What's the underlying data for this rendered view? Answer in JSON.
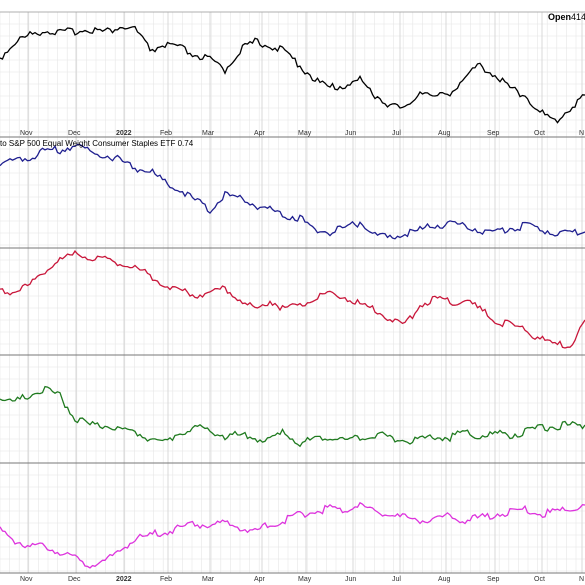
{
  "header": {
    "open_label": "Open",
    "open_value": "414"
  },
  "chart_data": {
    "type": "line",
    "x_labels": [
      "Nov",
      "Dec",
      "2022",
      "Feb",
      "Mar",
      "Apr",
      "May",
      "Jun",
      "Jul",
      "Aug",
      "Sep",
      "Oct",
      "N"
    ],
    "x_label_bold": [
      false,
      false,
      true,
      false,
      false,
      false,
      false,
      false,
      false,
      false,
      false,
      false,
      false
    ],
    "grid": true,
    "panels": [
      {
        "name": "",
        "label": "",
        "color": "#000000",
        "x": [
          0,
          15,
          30,
          45,
          60,
          75,
          90,
          105,
          120,
          135,
          150,
          165,
          180,
          195,
          210,
          225,
          240,
          255,
          270,
          285,
          300,
          315,
          330,
          345,
          360,
          375,
          390,
          405,
          420,
          435,
          450,
          465,
          480,
          495,
          510,
          525,
          540,
          555,
          570,
          585
        ],
        "values": [
          58,
          42,
          35,
          30,
          33,
          31,
          29,
          32,
          27,
          29,
          50,
          45,
          48,
          55,
          60,
          70,
          50,
          42,
          45,
          52,
          65,
          80,
          88,
          85,
          80,
          95,
          105,
          110,
          90,
          98,
          92,
          78,
          65,
          75,
          88,
          95,
          112,
          122,
          108,
          95
        ]
      },
      {
        "name": "",
        "label": "to S&P 500 Equal Weight Consumer Staples ETF 0.74",
        "color": "#1f1f8f",
        "x": [
          0,
          15,
          30,
          45,
          60,
          75,
          90,
          105,
          120,
          135,
          150,
          165,
          180,
          195,
          210,
          225,
          240,
          255,
          270,
          285,
          300,
          315,
          330,
          345,
          360,
          375,
          390,
          405,
          420,
          435,
          450,
          465,
          480,
          495,
          510,
          525,
          540,
          555,
          570,
          585
        ],
        "values": [
          165,
          160,
          158,
          150,
          150,
          145,
          152,
          155,
          160,
          168,
          170,
          183,
          190,
          200,
          210,
          195,
          198,
          205,
          210,
          215,
          218,
          230,
          232,
          229,
          222,
          235,
          238,
          234,
          230,
          225,
          224,
          226,
          230,
          232,
          228,
          226,
          229,
          232,
          233,
          232
        ]
      },
      {
        "name": "",
        "label": "",
        "color": "#c8163a",
        "x": [
          0,
          15,
          30,
          45,
          60,
          75,
          90,
          105,
          120,
          135,
          150,
          165,
          180,
          195,
          210,
          225,
          240,
          255,
          270,
          285,
          300,
          315,
          330,
          345,
          360,
          375,
          390,
          405,
          420,
          435,
          450,
          465,
          480,
          495,
          510,
          525,
          540,
          555,
          570,
          585
        ],
        "values": [
          293,
          290,
          285,
          270,
          260,
          255,
          257,
          260,
          262,
          268,
          275,
          285,
          290,
          295,
          292,
          288,
          300,
          310,
          300,
          310,
          305,
          298,
          295,
          297,
          305,
          310,
          318,
          325,
          305,
          298,
          302,
          300,
          310,
          320,
          325,
          330,
          338,
          345,
          345,
          320
        ]
      },
      {
        "name": "",
        "label": "",
        "color": "#1f7a1f",
        "x": [
          0,
          15,
          30,
          45,
          60,
          75,
          90,
          105,
          120,
          135,
          150,
          165,
          180,
          195,
          210,
          225,
          240,
          255,
          270,
          285,
          300,
          315,
          330,
          345,
          360,
          375,
          390,
          405,
          420,
          435,
          450,
          465,
          480,
          495,
          510,
          525,
          540,
          555,
          570,
          585
        ],
        "values": [
          398,
          402,
          395,
          390,
          396,
          418,
          425,
          426,
          430,
          432,
          438,
          442,
          432,
          428,
          430,
          436,
          435,
          438,
          440,
          432,
          445,
          438,
          436,
          440,
          437,
          434,
          438,
          440,
          440,
          436,
          438,
          432,
          436,
          434,
          435,
          432,
          428,
          426,
          425,
          425
        ]
      },
      {
        "name": "",
        "label": "",
        "color": "#dd33dd",
        "x": [
          0,
          15,
          30,
          45,
          60,
          75,
          90,
          105,
          120,
          135,
          150,
          165,
          180,
          195,
          210,
          225,
          240,
          255,
          270,
          285,
          300,
          315,
          330,
          345,
          360,
          375,
          390,
          405,
          420,
          435,
          450,
          465,
          480,
          495,
          510,
          525,
          540,
          555,
          570,
          585
        ],
        "values": [
          530,
          540,
          548,
          545,
          552,
          558,
          565,
          562,
          550,
          540,
          535,
          532,
          528,
          524,
          526,
          522,
          528,
          532,
          524,
          520,
          514,
          512,
          508,
          510,
          505,
          512,
          514,
          518,
          520,
          518,
          516,
          520,
          518,
          514,
          512,
          510,
          514,
          512,
          508,
          505
        ]
      }
    ]
  }
}
